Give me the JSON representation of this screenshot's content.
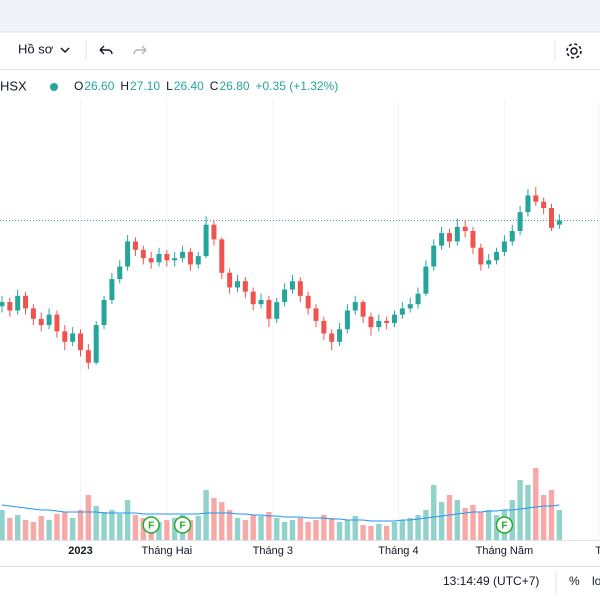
{
  "toolbar": {
    "profile": "Hồ sơ"
  },
  "legend": {
    "symbol": "HSX",
    "items": [
      {
        "key": "O",
        "value": "26.60"
      },
      {
        "key": "H",
        "value": "27.10"
      },
      {
        "key": "L",
        "value": "26.40"
      },
      {
        "key": "C",
        "value": "26.80"
      }
    ],
    "change": "+0.35 (+1.32%)"
  },
  "status": {
    "time": "13:14:49 (UTC+7)",
    "percent": "%",
    "log": "lo"
  },
  "chart_data": {
    "type": "candlestick",
    "ylim": [
      12,
      34
    ],
    "volume_ylim": [
      0,
      100
    ],
    "colors": {
      "up": "#26a69a",
      "down": "#ef5350",
      "volume_up": "#92d2cc",
      "volume_down": "#f7a9a7",
      "volume_ma": "#2196f3"
    },
    "open": [
      22.7,
      22.9,
      22.5,
      23.2,
      22.6,
      22.1,
      21.8,
      22.3,
      21.5,
      21.0,
      21.4,
      20.6,
      20.0,
      21.8,
      23.0,
      24.0,
      24.6,
      25.8,
      25.4,
      25.0,
      24.8,
      25.2,
      24.9,
      25.0,
      25.3,
      24.7,
      25.1,
      26.6,
      25.9,
      24.3,
      23.6,
      23.9,
      23.4,
      22.8,
      23.0,
      22.1,
      22.9,
      23.5,
      23.9,
      23.2,
      22.6,
      22.0,
      21.4,
      21.0,
      21.6,
      22.5,
      22.9,
      22.2,
      21.7,
      22.0,
      21.9,
      22.3,
      22.6,
      22.8,
      23.3,
      24.6,
      25.6,
      26.2,
      25.8,
      26.5,
      26.3,
      25.5,
      24.7,
      24.9,
      25.3,
      25.8,
      26.3,
      27.2,
      28.0,
      27.7,
      27.4,
      26.6
    ],
    "high": [
      23.2,
      23.1,
      23.5,
      23.4,
      22.8,
      22.4,
      22.6,
      22.5,
      21.8,
      21.7,
      21.6,
      20.9,
      22.0,
      23.2,
      24.3,
      24.9,
      26.1,
      26.0,
      25.6,
      25.3,
      25.5,
      25.4,
      25.3,
      25.6,
      25.5,
      25.3,
      27.0,
      26.8,
      26.0,
      24.5,
      24.2,
      24.1,
      23.6,
      23.3,
      23.2,
      23.1,
      23.8,
      24.2,
      24.1,
      23.4,
      22.8,
      22.2,
      21.6,
      21.9,
      22.8,
      23.2,
      23.0,
      22.4,
      22.3,
      22.2,
      22.5,
      22.9,
      23.1,
      23.6,
      24.9,
      25.9,
      26.5,
      26.4,
      26.9,
      26.8,
      26.5,
      25.7,
      25.2,
      25.5,
      26.1,
      26.6,
      27.5,
      28.3,
      28.4,
      27.9,
      27.6,
      27.1
    ],
    "low": [
      22.4,
      22.2,
      22.3,
      22.3,
      21.8,
      21.5,
      21.6,
      21.2,
      20.6,
      20.8,
      20.3,
      19.7,
      19.9,
      21.6,
      22.8,
      23.8,
      24.4,
      25.1,
      24.7,
      24.5,
      24.6,
      24.6,
      24.6,
      24.8,
      24.4,
      24.5,
      25.0,
      25.6,
      24.0,
      23.3,
      23.4,
      23.1,
      22.5,
      22.6,
      21.7,
      21.9,
      22.7,
      23.3,
      22.9,
      22.3,
      21.7,
      21.1,
      20.6,
      20.8,
      21.4,
      22.3,
      21.9,
      21.3,
      21.5,
      21.6,
      21.7,
      22.1,
      22.4,
      22.6,
      23.2,
      24.4,
      25.4,
      25.5,
      25.6,
      26.0,
      25.2,
      24.4,
      24.5,
      24.7,
      25.1,
      25.6,
      26.1,
      27.0,
      27.5,
      27.1,
      26.3,
      26.4
    ],
    "close": [
      22.9,
      22.5,
      23.2,
      22.6,
      22.1,
      21.8,
      22.3,
      21.5,
      21.0,
      21.4,
      20.6,
      20.0,
      21.8,
      23.0,
      24.0,
      24.6,
      25.8,
      25.4,
      25.0,
      24.8,
      25.2,
      24.9,
      25.0,
      25.3,
      24.7,
      25.1,
      26.6,
      25.9,
      24.3,
      23.6,
      23.9,
      23.4,
      22.8,
      23.0,
      22.1,
      22.9,
      23.5,
      23.9,
      23.2,
      22.6,
      22.0,
      21.4,
      21.0,
      21.6,
      22.5,
      22.9,
      22.2,
      21.7,
      22.0,
      21.9,
      22.3,
      22.6,
      22.8,
      23.3,
      24.6,
      25.6,
      26.2,
      25.8,
      26.5,
      26.3,
      25.5,
      24.7,
      24.9,
      25.3,
      25.8,
      26.3,
      27.2,
      28.0,
      27.7,
      27.4,
      26.45,
      26.8
    ],
    "volume": [
      30,
      22,
      25,
      20,
      18,
      24,
      20,
      26,
      28,
      22,
      30,
      45,
      34,
      28,
      30,
      26,
      40,
      25,
      22,
      20,
      18,
      20,
      22,
      25,
      20,
      24,
      50,
      42,
      38,
      30,
      22,
      20,
      25,
      24,
      28,
      22,
      18,
      20,
      22,
      18,
      20,
      25,
      22,
      18,
      20,
      24,
      15,
      14,
      16,
      14,
      18,
      20,
      22,
      25,
      30,
      55,
      38,
      45,
      40,
      32,
      35,
      28,
      30,
      25,
      30,
      40,
      60,
      55,
      72,
      45,
      50,
      30
    ],
    "volume_ma": [
      35,
      34,
      33,
      32,
      31,
      30,
      30,
      29,
      28,
      28,
      28,
      28,
      28,
      27,
      27,
      27,
      27,
      27,
      26,
      26,
      26,
      26,
      26,
      26,
      26,
      26,
      27,
      27,
      27,
      27,
      26,
      26,
      25,
      25,
      24,
      24,
      23,
      23,
      23,
      22,
      22,
      22,
      21,
      21,
      20,
      20,
      20,
      19,
      19,
      19,
      19,
      20,
      20,
      21,
      22,
      23,
      24,
      25,
      26,
      27,
      28,
      28,
      29,
      29,
      30,
      30,
      31,
      32,
      33,
      34,
      34,
      35
    ],
    "events": [
      {
        "index": 19,
        "label": "F"
      },
      {
        "index": 23,
        "label": "F"
      },
      {
        "index": 64,
        "label": "F"
      }
    ],
    "time_labels": [
      {
        "index": 10,
        "label": "2023"
      },
      {
        "index": 21,
        "label": "Tháng Hai"
      },
      {
        "index": 34.5,
        "label": "Tháng 3"
      },
      {
        "index": 50.5,
        "label": "Tháng 4"
      },
      {
        "index": 64,
        "label": "Tháng Năm"
      },
      {
        "index": 76,
        "label": "T"
      }
    ]
  }
}
